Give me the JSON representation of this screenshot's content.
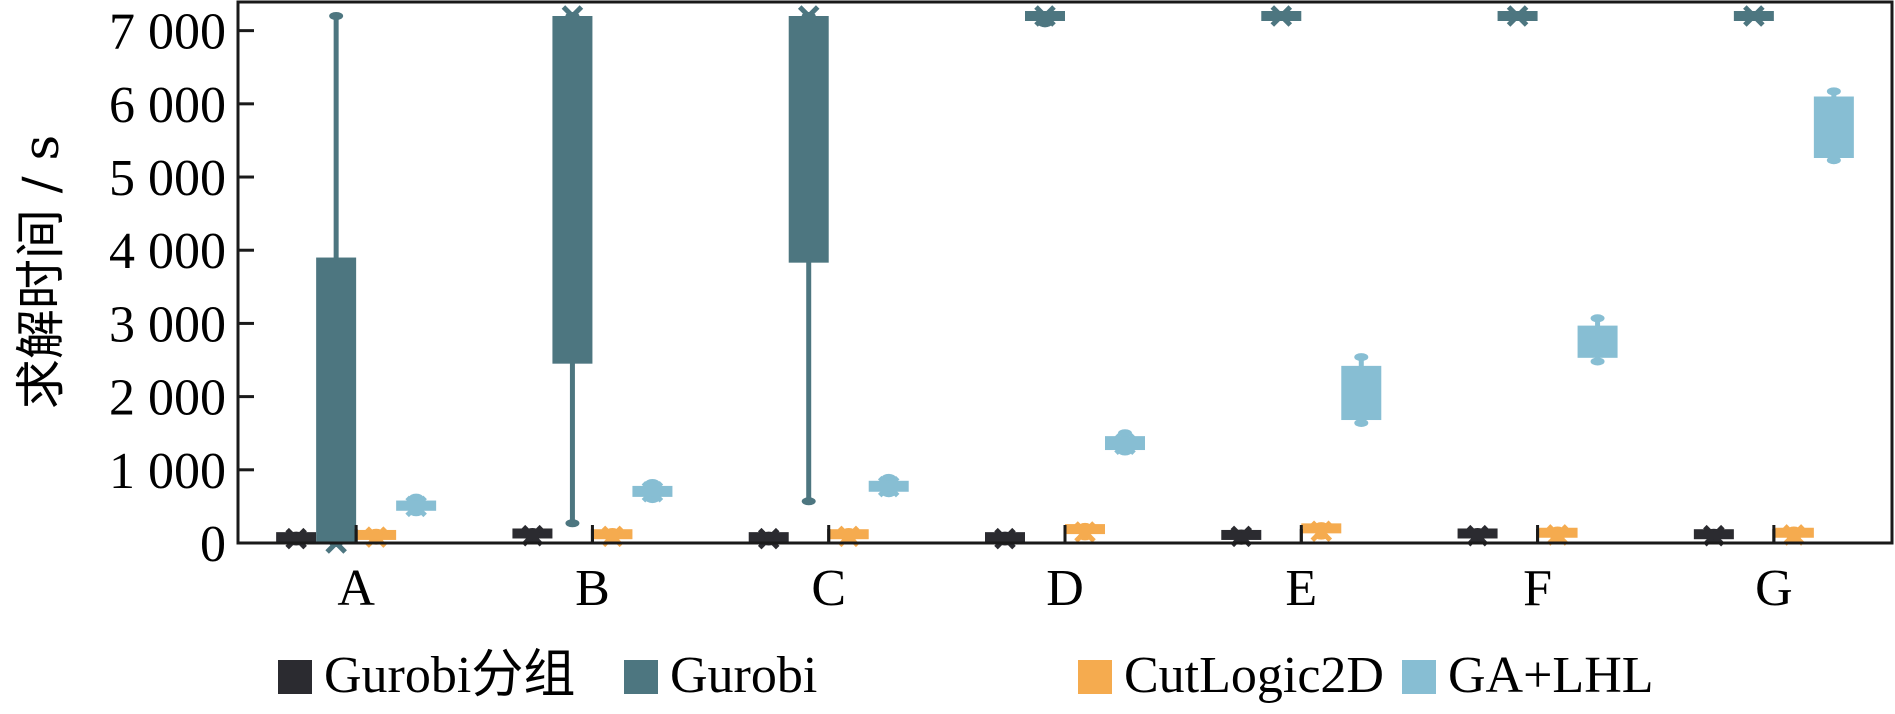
{
  "chart_data": {
    "type": "box",
    "ylabel": "求解时间 / s",
    "ylim": [
      0,
      7200
    ],
    "yticks": [
      0,
      1000,
      2000,
      3000,
      4000,
      5000,
      6000,
      7000
    ],
    "ytick_labels": [
      "0",
      "1 000",
      "2 000",
      "3 000",
      "4 000",
      "5 000",
      "6 000",
      "7 000"
    ],
    "categories": [
      "A",
      "B",
      "C",
      "D",
      "E",
      "F",
      "G"
    ],
    "legend_position": "bottom",
    "series": [
      {
        "name": "Gurobi分组",
        "color": "#2b2b30",
        "boxes": [
          {
            "min": 20,
            "q1": 40,
            "median": 60,
            "q3": 80,
            "max": 100
          },
          {
            "min": 40,
            "q1": 70,
            "median": 100,
            "q3": 130,
            "max": 150
          },
          {
            "min": 20,
            "q1": 40,
            "median": 60,
            "q3": 80,
            "max": 100
          },
          {
            "min": 20,
            "q1": 40,
            "median": 60,
            "q3": 80,
            "max": 100
          },
          {
            "min": 30,
            "q1": 60,
            "median": 90,
            "q3": 110,
            "max": 130
          },
          {
            "min": 40,
            "q1": 70,
            "median": 100,
            "q3": 130,
            "max": 150
          },
          {
            "min": 40,
            "q1": 70,
            "median": 100,
            "q3": 120,
            "max": 140
          }
        ]
      },
      {
        "name": "Gurobi",
        "color": "#4d7680",
        "boxes": [
          {
            "min": 0,
            "q1": 0,
            "median": 0,
            "q3": 3900,
            "max": 7200
          },
          {
            "min": 270,
            "q1": 2450,
            "median": 7200,
            "q3": 7200,
            "max": 7200
          },
          {
            "min": 570,
            "q1": 3830,
            "median": 7200,
            "q3": 7200,
            "max": 7200
          },
          {
            "min": 7100,
            "q1": 7150,
            "median": 7200,
            "q3": 7200,
            "max": 7200
          },
          {
            "min": 7200,
            "q1": 7200,
            "median": 7200,
            "q3": 7200,
            "max": 7200
          },
          {
            "min": 7200,
            "q1": 7200,
            "median": 7200,
            "q3": 7200,
            "max": 7200
          },
          {
            "min": 7200,
            "q1": 7200,
            "median": 7200,
            "q3": 7200,
            "max": 7200
          }
        ]
      },
      {
        "name": "CutLogic2D",
        "color": "#f5ab4f",
        "boxes": [
          {
            "min": 30,
            "q1": 50,
            "median": 80,
            "q3": 110,
            "max": 140
          },
          {
            "min": 40,
            "q1": 60,
            "median": 90,
            "q3": 120,
            "max": 150
          },
          {
            "min": 40,
            "q1": 60,
            "median": 90,
            "q3": 120,
            "max": 150
          },
          {
            "min": 90,
            "q1": 110,
            "median": 150,
            "q3": 190,
            "max": 220
          },
          {
            "min": 100,
            "q1": 120,
            "median": 160,
            "q3": 200,
            "max": 230
          },
          {
            "min": 60,
            "q1": 80,
            "median": 110,
            "q3": 140,
            "max": 170
          },
          {
            "min": 60,
            "q1": 80,
            "median": 110,
            "q3": 140,
            "max": 170
          }
        ]
      },
      {
        "name": "GA+LHL",
        "color": "#87bed3",
        "boxes": [
          {
            "min": 420,
            "q1": 440,
            "median": 500,
            "q3": 580,
            "max": 620
          },
          {
            "min": 600,
            "q1": 630,
            "median": 700,
            "q3": 780,
            "max": 820
          },
          {
            "min": 680,
            "q1": 700,
            "median": 770,
            "q3": 850,
            "max": 890
          },
          {
            "min": 1250,
            "q1": 1270,
            "median": 1350,
            "q3": 1460,
            "max": 1500
          },
          {
            "min": 1640,
            "q1": 1680,
            "median": 2050,
            "q3": 2420,
            "max": 2540
          },
          {
            "min": 2480,
            "q1": 2530,
            "median": 2750,
            "q3": 2970,
            "max": 3070
          },
          {
            "min": 5230,
            "q1": 5260,
            "median": 5700,
            "q3": 6100,
            "max": 6170
          }
        ]
      }
    ]
  }
}
